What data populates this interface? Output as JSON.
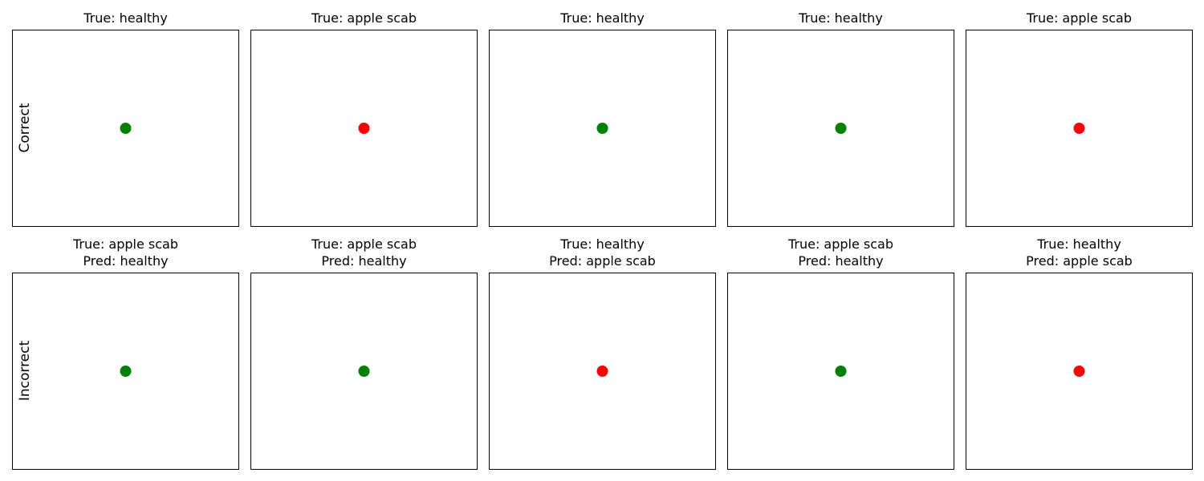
{
  "rows": [
    {
      "label": "Correct",
      "panels": [
        {
          "title": [
            "True: healthy"
          ],
          "dot_color": "#008000"
        },
        {
          "title": [
            "True: apple scab"
          ],
          "dot_color": "#ff0000"
        },
        {
          "title": [
            "True: healthy"
          ],
          "dot_color": "#008000"
        },
        {
          "title": [
            "True: healthy"
          ],
          "dot_color": "#008000"
        },
        {
          "title": [
            "True: apple scab"
          ],
          "dot_color": "#ff0000"
        }
      ]
    },
    {
      "label": "Incorrect",
      "panels": [
        {
          "title": [
            "True: apple scab",
            "Pred: healthy"
          ],
          "dot_color": "#008000"
        },
        {
          "title": [
            "True: apple scab",
            "Pred: healthy"
          ],
          "dot_color": "#008000"
        },
        {
          "title": [
            "True: healthy",
            "Pred: apple scab"
          ],
          "dot_color": "#ff0000"
        },
        {
          "title": [
            "True: apple scab",
            "Pred: healthy"
          ],
          "dot_color": "#008000"
        },
        {
          "title": [
            "True: healthy",
            "Pred: apple scab"
          ],
          "dot_color": "#ff0000"
        }
      ]
    }
  ]
}
